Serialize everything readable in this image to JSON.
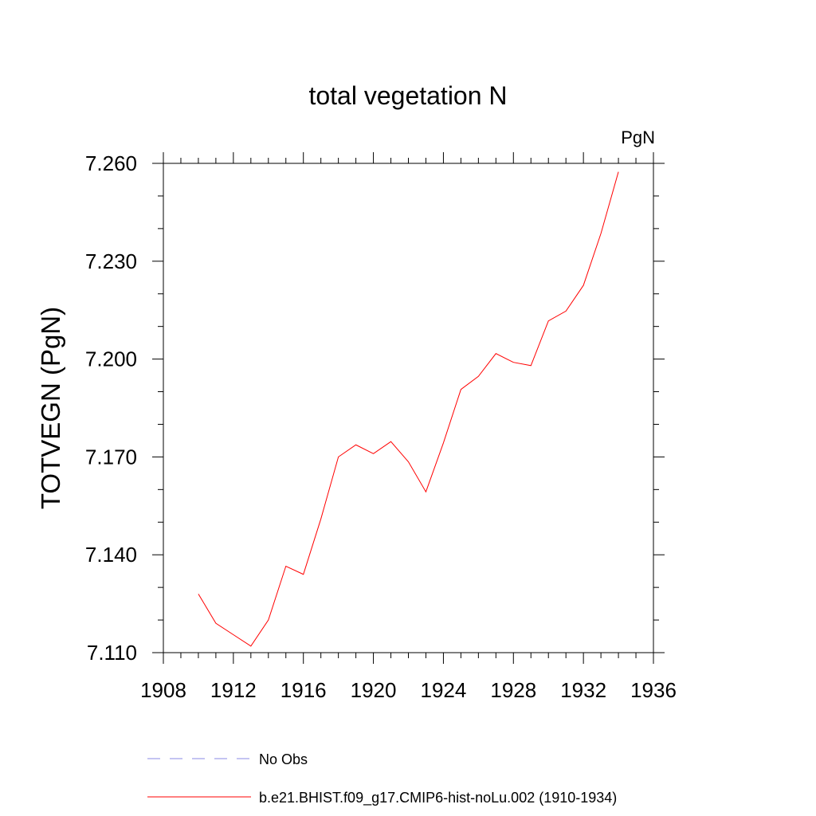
{
  "chart_data": {
    "type": "line",
    "title": "total vegetation N",
    "units": "PgN",
    "xlabel": "",
    "ylabel": "TOTVEGN  (PgN)",
    "xlim": [
      1908,
      1936
    ],
    "ylim": [
      7.11,
      7.26
    ],
    "xticks": [
      1908,
      1912,
      1916,
      1920,
      1924,
      1928,
      1932,
      1936
    ],
    "yticks": [
      "7.110",
      "7.140",
      "7.170",
      "7.200",
      "7.230",
      "7.260"
    ],
    "ytick_values": [
      7.11,
      7.14,
      7.17,
      7.2,
      7.23,
      7.26
    ],
    "grid": false,
    "legend_position": "bottom",
    "series": [
      {
        "name": "No Obs",
        "color": "#8a8ae6",
        "dash": "dashed",
        "x": [],
        "y": []
      },
      {
        "name": "b.e21.BHIST.f09_g17.CMIP6-hist-noLu.002 (1910-1934)",
        "color": "#ff0000",
        "dash": "solid",
        "x": [
          1910,
          1911,
          1912,
          1913,
          1914,
          1915,
          1916,
          1917,
          1918,
          1919,
          1920,
          1921,
          1922,
          1923,
          1924,
          1925,
          1926,
          1927,
          1928,
          1929,
          1930,
          1931,
          1932,
          1933,
          1934
        ],
        "y": [
          7.128,
          7.119,
          7.1155,
          7.112,
          7.12,
          7.1365,
          7.134,
          7.151,
          7.17,
          7.1737,
          7.171,
          7.1747,
          7.1685,
          7.1593,
          7.1743,
          7.1907,
          7.1947,
          7.2017,
          7.199,
          7.198,
          7.2117,
          7.2147,
          7.2226,
          7.2385,
          7.2574
        ]
      }
    ]
  }
}
